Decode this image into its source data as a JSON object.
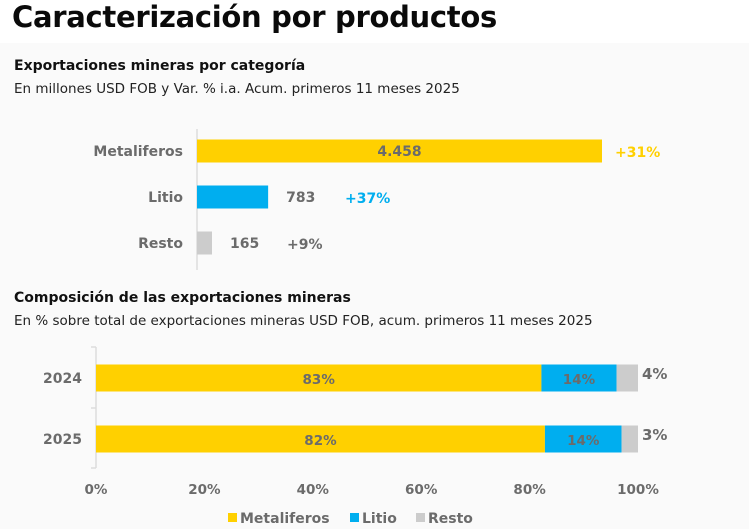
{
  "page": {
    "title": "Caracterización por productos"
  },
  "chart_data": [
    {
      "type": "bar",
      "orientation": "horizontal",
      "title": "Exportaciones mineras por categoría",
      "subtitle": "En millones USD FOB y Var. % i.a. Acum. primeros 11 meses 2025",
      "categories": [
        "Metaliferos",
        "Litio",
        "Resto"
      ],
      "values": [
        4458,
        783,
        165
      ],
      "value_labels": [
        "4.458",
        "783",
        "165"
      ],
      "variation_labels": [
        "+31%",
        "+37%",
        "+9%"
      ],
      "colors": [
        "#FFD000",
        "#00AEEF",
        "#CCCCCC"
      ],
      "variation_colors": [
        "#FFD000",
        "#00AEEF",
        "#6b6b6b"
      ],
      "xlim": [
        0,
        4458
      ],
      "grid": false
    },
    {
      "type": "bar",
      "orientation": "horizontal",
      "stacked": true,
      "title": "Composición de las exportaciones mineras",
      "subtitle": "En % sobre total de exportaciones mineras USD FOB, acum. primeros 11 meses 2025",
      "categories": [
        "2024",
        "2025"
      ],
      "series": [
        {
          "name": "Metaliferos",
          "color": "#FFD000",
          "values": [
            83,
            82
          ],
          "labels": [
            "83%",
            "82%"
          ]
        },
        {
          "name": "Litio",
          "color": "#00AEEF",
          "values": [
            14,
            14
          ],
          "labels": [
            "14%",
            "14%"
          ]
        },
        {
          "name": "Resto",
          "color": "#CCCCCC",
          "values": [
            4,
            3
          ],
          "labels": [
            "4%",
            "3%"
          ]
        }
      ],
      "xticks": [
        "0%",
        "20%",
        "40%",
        "60%",
        "80%",
        "100%"
      ],
      "xlim": [
        0,
        100
      ],
      "legend": {
        "position": "bottom",
        "entries": [
          "Metaliferos",
          "Litio",
          "Resto"
        ]
      },
      "grid": false
    }
  ]
}
